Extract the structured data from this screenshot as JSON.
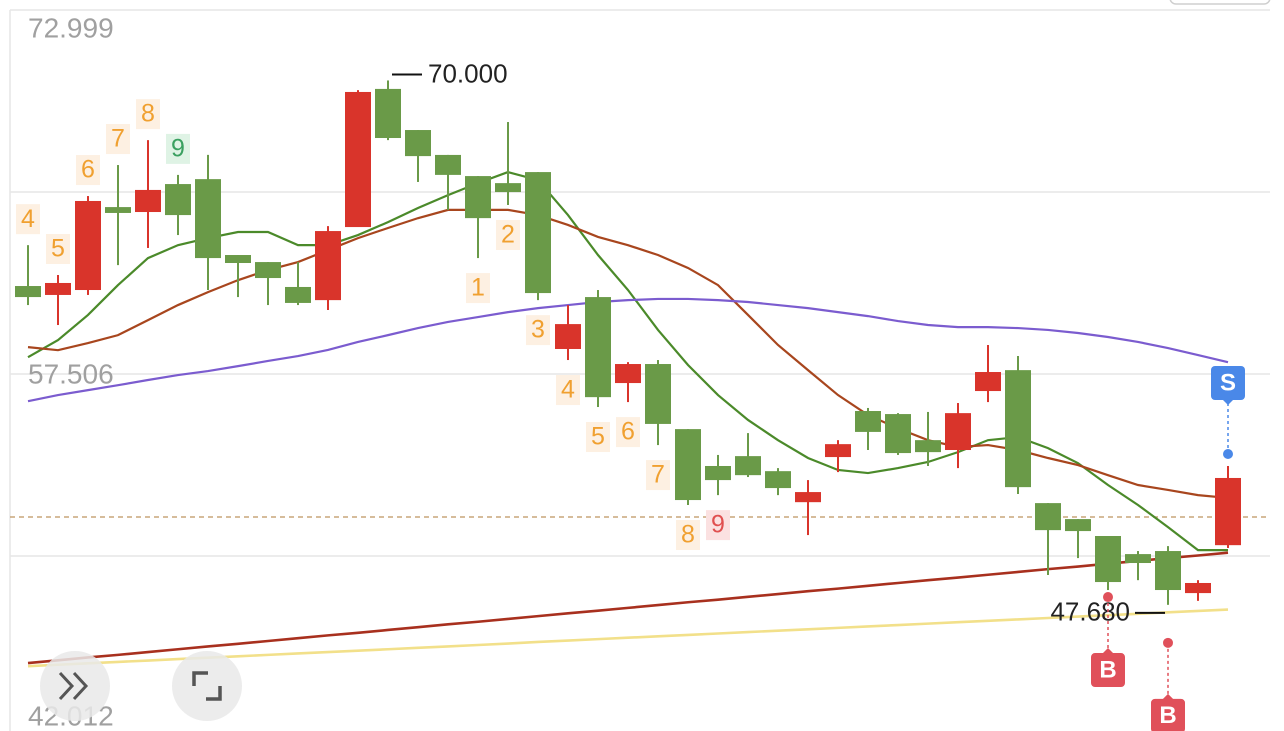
{
  "chart_data": {
    "type": "candlestick",
    "ylim": [
      42.012,
      72.999
    ],
    "yticks": [
      {
        "value": 42.012,
        "label": "42.012"
      },
      {
        "value": 57.506,
        "label": "57.506"
      },
      {
        "value": 72.999,
        "label": "72.999"
      }
    ],
    "grid": true,
    "up_color": "#d9342b",
    "down_color": "#6a9a48",
    "open": [
      61.25,
      60.87,
      61.08,
      64.61,
      64.4,
      65.59,
      65.8,
      62.57,
      62.27,
      61.21,
      60.65,
      63.76,
      69.64,
      67.89,
      66.83,
      65.93,
      65.63,
      66.1,
      58.57,
      60.78,
      57.12,
      57.93,
      55.16,
      53.59,
      54.01,
      53.37,
      52.05,
      53.97,
      55.93,
      55.8,
      54.69,
      54.27,
      56.78,
      57.67,
      52.01,
      51.33,
      50.61,
      49.84,
      49.97,
      48.18,
      50.22
    ],
    "high": [
      62.99,
      61.72,
      65.08,
      66.4,
      67.46,
      65.98,
      66.83,
      62.57,
      62.27,
      62.27,
      63.8,
      69.59,
      70.0,
      67.89,
      66.83,
      65.93,
      68.23,
      66.1,
      60.44,
      61.08,
      58.01,
      58.1,
      55.16,
      54.06,
      54.99,
      53.5,
      52.99,
      54.69,
      56.06,
      55.84,
      55.89,
      56.27,
      58.74,
      58.27,
      52.01,
      51.33,
      50.61,
      49.97,
      50.18,
      48.73,
      53.59
    ],
    "low": [
      60.44,
      59.59,
      60.87,
      62.14,
      62.87,
      63.42,
      61.08,
      60.78,
      60.44,
      60.44,
      60.23,
      63.76,
      67.46,
      65.68,
      64.49,
      62.44,
      64.7,
      60.65,
      58.1,
      56.1,
      56.31,
      54.48,
      51.93,
      52.35,
      53.12,
      52.35,
      50.65,
      53.33,
      54.27,
      54.06,
      53.59,
      53.5,
      56.31,
      52.4,
      48.95,
      49.67,
      48.31,
      48.73,
      47.68,
      47.85,
      50.1
    ],
    "close": [
      60.78,
      61.38,
      64.87,
      64.36,
      65.34,
      64.27,
      62.44,
      62.23,
      61.59,
      60.53,
      63.59,
      69.51,
      67.55,
      66.78,
      65.98,
      64.14,
      65.25,
      60.95,
      59.63,
      56.52,
      57.93,
      55.38,
      52.14,
      52.99,
      53.2,
      52.65,
      52.48,
      54.52,
      55.04,
      54.14,
      54.18,
      55.84,
      57.59,
      52.69,
      50.86,
      50.82,
      48.65,
      49.46,
      48.31,
      48.61,
      53.08
    ],
    "high_label": "70.000",
    "low_label": "47.680",
    "price_line": 51.42,
    "td_up": [
      4,
      5,
      6,
      7,
      8,
      9,
      null,
      null,
      null,
      null,
      null,
      null,
      null,
      null,
      null,
      null,
      null,
      null,
      null,
      null,
      null,
      null,
      null,
      null,
      null,
      null,
      null,
      null,
      null,
      null,
      null,
      null,
      null,
      null,
      null,
      null,
      null,
      null,
      null,
      null,
      null
    ],
    "td_down": [
      null,
      null,
      null,
      null,
      null,
      null,
      null,
      null,
      null,
      null,
      null,
      null,
      null,
      null,
      null,
      1,
      2,
      3,
      4,
      5,
      6,
      7,
      8,
      9,
      null,
      null,
      null,
      null,
      null,
      null,
      null,
      null,
      null,
      null,
      null,
      null,
      null,
      null,
      null,
      null,
      null
    ],
    "signals": [
      null,
      null,
      null,
      null,
      null,
      null,
      null,
      null,
      null,
      null,
      null,
      null,
      null,
      null,
      null,
      null,
      null,
      null,
      null,
      null,
      null,
      null,
      null,
      null,
      null,
      null,
      null,
      null,
      null,
      null,
      null,
      null,
      null,
      null,
      null,
      null,
      "B",
      null,
      "B",
      null,
      "S"
    ],
    "ma_lines": [
      {
        "color": "#4b8a2a",
        "values": [
          58.22,
          58.95,
          60.02,
          61.29,
          62.44,
          62.99,
          63.29,
          63.55,
          63.55,
          62.99,
          62.99,
          63.42,
          63.97,
          64.57,
          65.12,
          65.63,
          66.1,
          65.76,
          64.27,
          62.57,
          61.08,
          59.38,
          57.89,
          56.61,
          55.55,
          54.69,
          53.93,
          53.42,
          53.29,
          53.5,
          53.76,
          54.18,
          54.69,
          54.82,
          54.35,
          53.71,
          52.78,
          51.93,
          50.99,
          50.01,
          50.01
        ]
      },
      {
        "color": "#a8461e",
        "values": [
          58.65,
          58.52,
          58.82,
          59.16,
          59.8,
          60.44,
          60.99,
          61.5,
          61.93,
          62.27,
          62.78,
          63.29,
          63.72,
          64.14,
          64.49,
          64.49,
          64.49,
          64.27,
          63.85,
          63.34,
          62.99,
          62.57,
          62.02,
          61.29,
          60.02,
          58.74,
          57.67,
          56.61,
          55.76,
          55.19,
          54.69,
          54.4,
          54.48,
          54.27,
          53.93,
          53.63,
          53.2,
          52.78,
          52.57,
          52.35,
          52.23
        ]
      },
      {
        "color": "#7b5ccf",
        "values": [
          56.35,
          56.61,
          56.82,
          57.03,
          57.25,
          57.46,
          57.63,
          57.84,
          58.06,
          58.27,
          58.53,
          58.87,
          59.16,
          59.46,
          59.72,
          59.93,
          60.14,
          60.31,
          60.44,
          60.57,
          60.65,
          60.7,
          60.7,
          60.65,
          60.57,
          60.44,
          60.31,
          60.14,
          59.97,
          59.76,
          59.59,
          59.5,
          59.5,
          59.46,
          59.38,
          59.25,
          59.08,
          58.87,
          58.61,
          58.31,
          58.01
        ]
      },
      {
        "color": "#a8301e",
        "values": [
          45.2,
          45.32,
          45.44,
          45.55,
          45.67,
          45.79,
          45.91,
          46.02,
          46.14,
          46.26,
          46.38,
          46.49,
          46.61,
          46.73,
          46.85,
          46.96,
          47.08,
          47.2,
          47.32,
          47.43,
          47.55,
          47.67,
          47.79,
          47.9,
          48.02,
          48.14,
          48.26,
          48.37,
          48.49,
          48.61,
          48.73,
          48.84,
          48.96,
          49.08,
          49.2,
          49.31,
          49.43,
          49.55,
          49.67,
          49.78,
          49.9
        ]
      },
      {
        "color": "#f2e08a",
        "values": [
          45.07,
          45.13,
          45.19,
          45.25,
          45.31,
          45.37,
          45.43,
          45.49,
          45.55,
          45.61,
          45.67,
          45.73,
          45.79,
          45.85,
          45.91,
          45.97,
          46.03,
          46.1,
          46.16,
          46.22,
          46.28,
          46.34,
          46.4,
          46.46,
          46.52,
          46.58,
          46.64,
          46.7,
          46.76,
          46.82,
          46.88,
          46.94,
          47.0,
          47.06,
          47.12,
          47.18,
          47.24,
          47.3,
          47.36,
          47.42,
          47.48
        ]
      }
    ]
  }
}
